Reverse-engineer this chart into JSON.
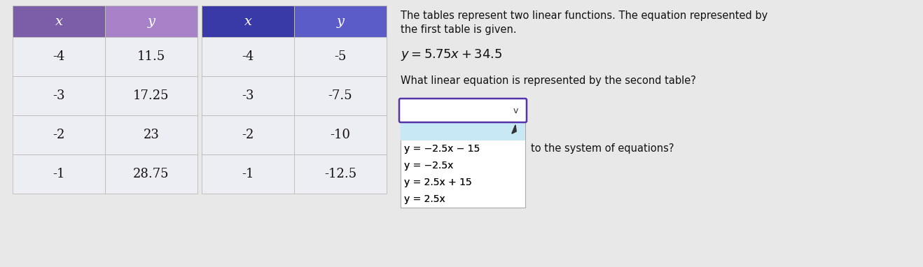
{
  "table1_header": [
    "x",
    "y"
  ],
  "table1_rows": [
    [
      "-4",
      "11.5"
    ],
    [
      "-3",
      "17.25"
    ],
    [
      "-2",
      "23"
    ],
    [
      "-1",
      "28.75"
    ]
  ],
  "table1_hdr_colors": [
    "#7B5EA7",
    "#A882C8"
  ],
  "table1_row_bg": "#EDEDF4",
  "table1_border_color": "#BBBBBB",
  "table2_header": [
    "x",
    "y"
  ],
  "table2_rows": [
    [
      "-4",
      "-5"
    ],
    [
      "-3",
      "-7.5"
    ],
    [
      "-2",
      "-10"
    ],
    [
      "-1",
      "-12.5"
    ]
  ],
  "table2_hdr_colors": [
    "#3939A8",
    "#5C5CC8"
  ],
  "table2_row_bg": "#EDEDF4",
  "table2_border_color": "#BBBBBB",
  "text_line1": "The tables represent two linear functions. The equation represented by",
  "text_line2": "the first table is given.",
  "equation": "y = 5.75x + 34.5",
  "question": "What linear equation is represented by the second table?",
  "dropdown_border_color": "#5533AA",
  "dropdown_bg": "#FFFFFF",
  "dropdown_open_bg": "#C8E8F5",
  "dropdown_list_border": "#AAAAAA",
  "dropdown_options": [
    "y = −2.5x − 15",
    "y = −2.5x",
    "y = 2.5x + 15",
    "y = 2.5x"
  ],
  "suffix_text": "to the system of equations?",
  "background_color": "#E8E8E8",
  "fig_bg": "#E8E8E8",
  "figsize": [
    13.18,
    3.82
  ],
  "dpi": 100
}
